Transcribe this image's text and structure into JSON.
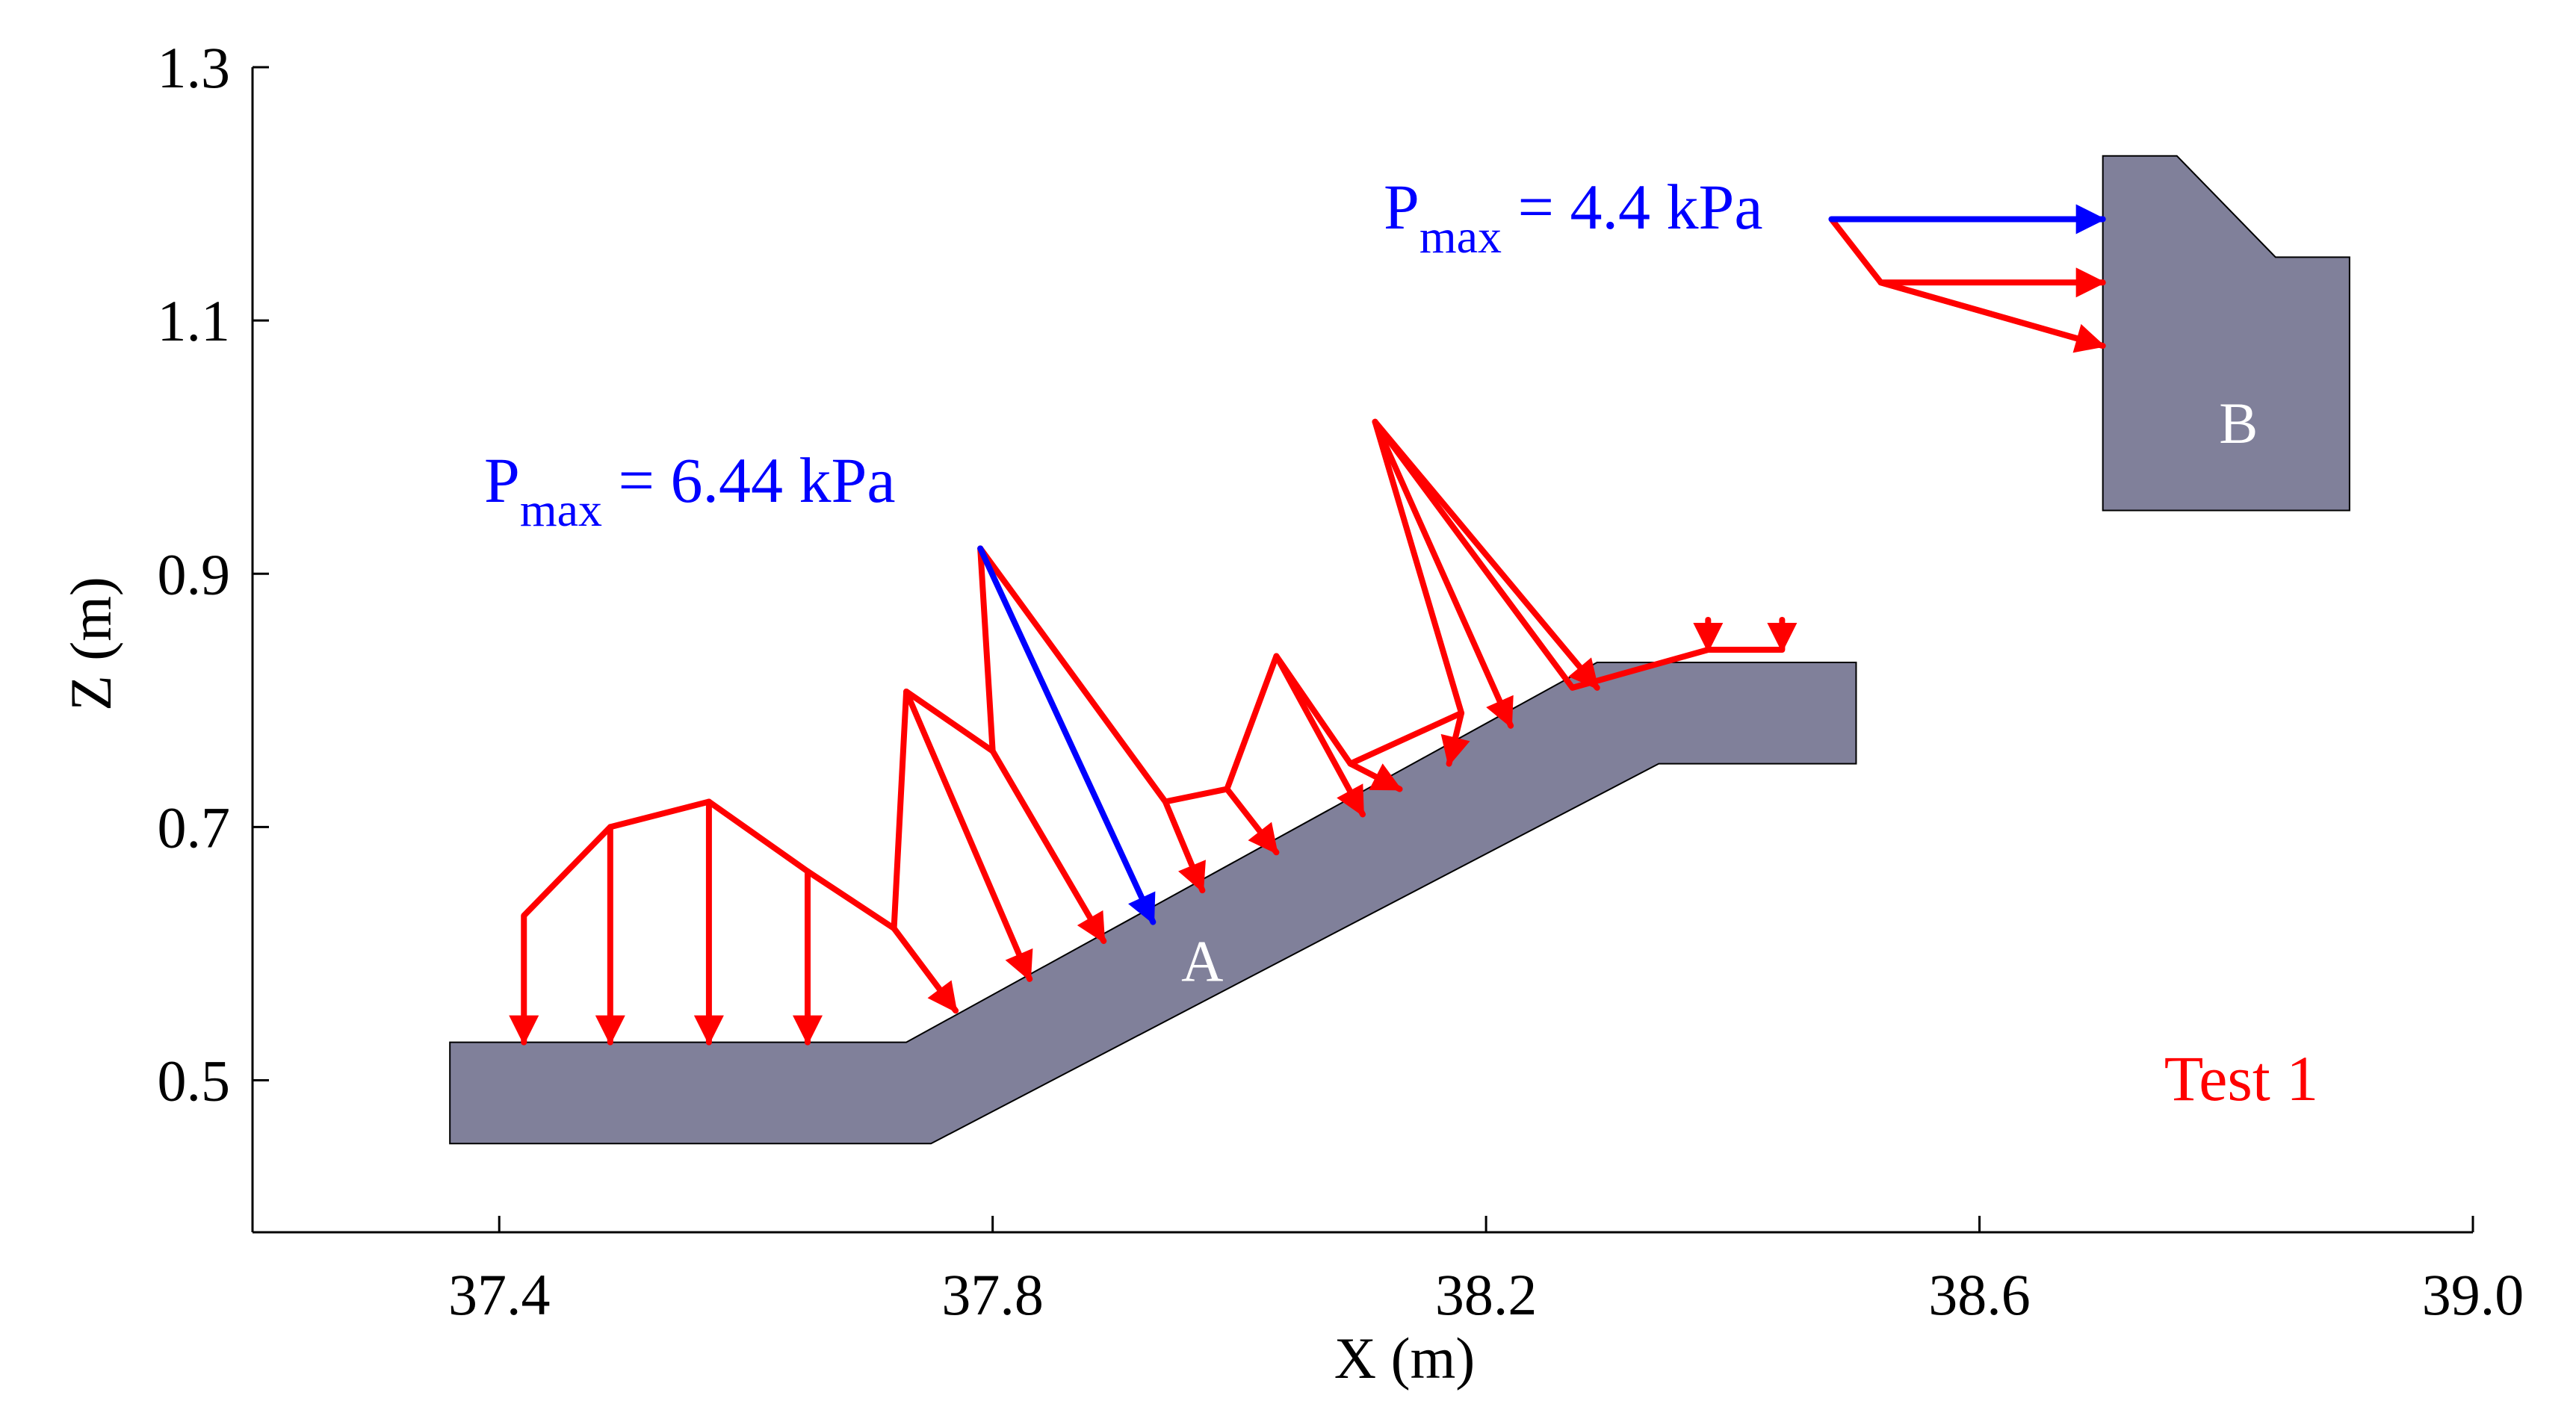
{
  "chart_data": {
    "type": "vector-field",
    "xlabel": "X (m)",
    "ylabel": "Z (m)",
    "xlim": [
      37.2,
      39.0
    ],
    "ylim": [
      0.38,
      1.3
    ],
    "x_ticks": [
      "37.4",
      "37.8",
      "38.2",
      "38.6",
      "39.0"
    ],
    "x_tick_values": [
      37.4,
      37.8,
      38.2,
      38.6,
      39.0
    ],
    "y_ticks": [
      "0.5",
      "0.7",
      "0.9",
      "1.1",
      "1.3"
    ],
    "y_tick_values": [
      0.5,
      0.7,
      0.9,
      1.1,
      1.3
    ],
    "annotation_test": "Test 1",
    "structures": [
      {
        "label": "A",
        "label_at": [
          37.97,
          0.595
        ],
        "color": "#80809a",
        "polygon": [
          [
            37.36,
            0.53
          ],
          [
            37.73,
            0.53
          ],
          [
            38.29,
            0.83
          ],
          [
            38.5,
            0.83
          ],
          [
            38.5,
            0.75
          ],
          [
            38.34,
            0.75
          ],
          [
            37.75,
            0.45
          ],
          [
            37.36,
            0.45
          ]
        ]
      },
      {
        "label": "B",
        "label_at": [
          38.81,
          1.02
        ],
        "color": "#80809a",
        "polygon": [
          [
            38.7,
            1.23
          ],
          [
            38.76,
            1.23
          ],
          [
            38.84,
            1.15
          ],
          [
            38.9,
            1.15
          ],
          [
            38.9,
            0.95
          ],
          [
            38.7,
            0.95
          ]
        ]
      }
    ],
    "pressure_A": {
      "envelope": [
        [
          37.42,
          0.63
        ],
        [
          37.49,
          0.7
        ],
        [
          37.57,
          0.72
        ],
        [
          37.65,
          0.665
        ],
        [
          37.72,
          0.62
        ],
        [
          37.73,
          0.807
        ],
        [
          37.8,
          0.76
        ],
        [
          37.79,
          0.92
        ],
        [
          37.94,
          0.72
        ],
        [
          37.99,
          0.73
        ],
        [
          38.03,
          0.835
        ],
        [
          38.09,
          0.75
        ],
        [
          38.18,
          0.79
        ],
        [
          38.11,
          1.02
        ],
        [
          38.27,
          0.81
        ],
        [
          38.38,
          0.84
        ],
        [
          38.44,
          0.84
        ]
      ],
      "arrows": [
        {
          "from": [
            37.42,
            0.63
          ],
          "to": [
            37.42,
            0.53
          ]
        },
        {
          "from": [
            37.49,
            0.7
          ],
          "to": [
            37.49,
            0.53
          ]
        },
        {
          "from": [
            37.57,
            0.72
          ],
          "to": [
            37.57,
            0.53
          ]
        },
        {
          "from": [
            37.65,
            0.665
          ],
          "to": [
            37.65,
            0.53
          ]
        },
        {
          "from": [
            37.72,
            0.62
          ],
          "to": [
            37.77,
            0.555
          ]
        },
        {
          "from": [
            37.73,
            0.807
          ],
          "to": [
            37.83,
            0.58
          ]
        },
        {
          "from": [
            37.8,
            0.76
          ],
          "to": [
            37.89,
            0.61
          ]
        },
        {
          "from": [
            37.94,
            0.72
          ],
          "to": [
            37.97,
            0.65
          ]
        },
        {
          "from": [
            37.99,
            0.73
          ],
          "to": [
            38.03,
            0.68
          ]
        },
        {
          "from": [
            38.03,
            0.835
          ],
          "to": [
            38.1,
            0.71
          ]
        },
        {
          "from": [
            38.09,
            0.75
          ],
          "to": [
            38.13,
            0.73
          ]
        },
        {
          "from": [
            38.18,
            0.79
          ],
          "to": [
            38.17,
            0.75
          ]
        },
        {
          "from": [
            38.11,
            1.02
          ],
          "to": [
            38.22,
            0.78
          ]
        },
        {
          "from": [
            38.11,
            1.02
          ],
          "to": [
            38.29,
            0.81
          ]
        },
        {
          "from": [
            38.38,
            0.84
          ],
          "to": [
            38.38,
            0.84
          ]
        },
        {
          "from": [
            38.44,
            0.84
          ],
          "to": [
            38.44,
            0.84
          ]
        }
      ],
      "pmax_arrow": {
        "from": [
          37.79,
          0.92
        ],
        "to": [
          37.93,
          0.625
        ]
      }
    },
    "pressure_B": {
      "envelope": [
        [
          38.48,
          1.18
        ],
        [
          38.52,
          1.13
        ],
        [
          38.7,
          1.08
        ]
      ],
      "arrows": [
        {
          "from": [
            38.52,
            1.13
          ],
          "to": [
            38.7,
            1.13
          ]
        },
        {
          "from": [
            38.52,
            1.13
          ],
          "to": [
            38.7,
            1.08
          ]
        }
      ],
      "pmax_arrow": {
        "from": [
          38.48,
          1.18
        ],
        "to": [
          38.7,
          1.18
        ]
      }
    },
    "labels": {
      "pmax_A": {
        "P": "P",
        "sub": "max",
        "value": " = 6.44 kPa"
      },
      "pmax_B": {
        "P": "P",
        "sub": "max",
        "value": " = 4.4 kPa"
      }
    },
    "colors": {
      "pressure": "#ff0000",
      "pmax": "#0000ff",
      "structure_label": "#ffffff",
      "axis": "#000000"
    }
  }
}
